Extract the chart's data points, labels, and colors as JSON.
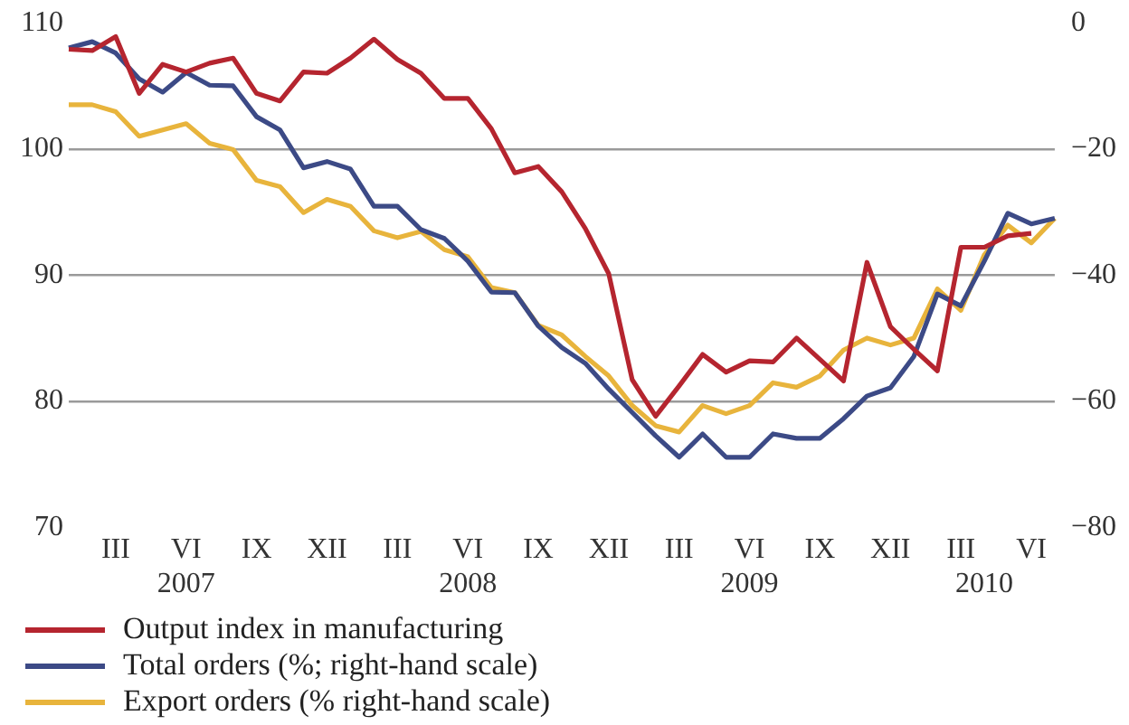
{
  "chart_data": {
    "type": "line",
    "legend": "bottom",
    "grid": "y",
    "line_style": "solid",
    "marker": "none",
    "categories": [
      null,
      null,
      "III",
      null,
      null,
      "VI\n2007",
      null,
      null,
      "IX",
      null,
      null,
      "XII",
      null,
      null,
      "III",
      null,
      null,
      "VI\n2008",
      null,
      null,
      "IX",
      null,
      null,
      "XII",
      null,
      null,
      "III",
      null,
      null,
      "VI\n2009",
      null,
      null,
      "IX",
      null,
      null,
      "XII",
      null,
      null,
      "III",
      "\n2010",
      null,
      "VI",
      null
    ],
    "ylim": [
      70,
      110
    ],
    "yticks": [
      70,
      80,
      90,
      100,
      110
    ],
    "y2lim": [
      -80,
      0
    ],
    "y2ticks": [
      {
        "value": -80,
        "label": "−80"
      },
      {
        "value": -60,
        "label": "−60"
      },
      {
        "value": -40,
        "label": "−40"
      },
      {
        "value": -20,
        "label": "−20"
      },
      0
    ],
    "series": [
      {
        "name": "Output index in manufacturing",
        "color": "#b5252f",
        "values": [
          107.9,
          107.8,
          108.9,
          104.4,
          106.7,
          106.1,
          106.8,
          107.2,
          104.4,
          103.8,
          106.1,
          106.0,
          107.2,
          108.7,
          107.1,
          106.0,
          104.0,
          104.0,
          101.6,
          98.1,
          98.6,
          96.6,
          93.7,
          90.1,
          81.7,
          78.8,
          81.2,
          83.7,
          82.3,
          83.2,
          83.1,
          85.0,
          83.3,
          81.6,
          91.0,
          85.9,
          84.1,
          82.4,
          92.2,
          92.2,
          93.1,
          93.3,
          null
        ]
      },
      {
        "name": "Total orders (%; right-hand scale)",
        "color": "#3c4a86",
        "axis": "y2",
        "values": [
          -4.0,
          -3.0,
          -4.8,
          -8.9,
          -11.0,
          -7.9,
          -9.9,
          -10.0,
          -14.9,
          -17.0,
          -23.0,
          -22.0,
          -23.2,
          -29.1,
          -29.1,
          -32.8,
          -34.2,
          -37.8,
          -42.7,
          -42.8,
          -48.1,
          -51.5,
          -54.0,
          -58.1,
          -61.8,
          -65.5,
          -68.9,
          -65.2,
          -68.9,
          -68.9,
          -65.2,
          -65.9,
          -65.9,
          -62.8,
          -59.2,
          -57.9,
          -52.9,
          -43.0,
          -44.9,
          -37.8,
          -30.2,
          -31.9,
          -31.0
        ]
      },
      {
        "name": "Export orders (% right-hand scale)",
        "color": "#e8b43c",
        "axis": "y2",
        "values": [
          -13.0,
          -13.0,
          -14.1,
          -18.0,
          -17.0,
          -16.0,
          -19.1,
          -20.1,
          -25.0,
          -26.0,
          -30.1,
          -28.0,
          -29.1,
          -33.0,
          -34.1,
          -33.1,
          -36.0,
          -37.1,
          -42.0,
          -42.8,
          -48.0,
          -49.5,
          -52.9,
          -56.0,
          -60.7,
          -63.9,
          -64.9,
          -60.7,
          -62.0,
          -60.7,
          -57.1,
          -57.8,
          -56.0,
          -51.9,
          -50.0,
          -51.1,
          -50.0,
          -42.2,
          -45.6,
          -36.8,
          -32.1,
          -34.9,
          -31.0
        ]
      }
    ]
  }
}
